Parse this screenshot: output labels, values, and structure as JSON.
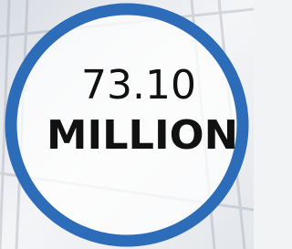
{
  "badge": {
    "value": "73.10",
    "unit": "MILLION"
  }
}
